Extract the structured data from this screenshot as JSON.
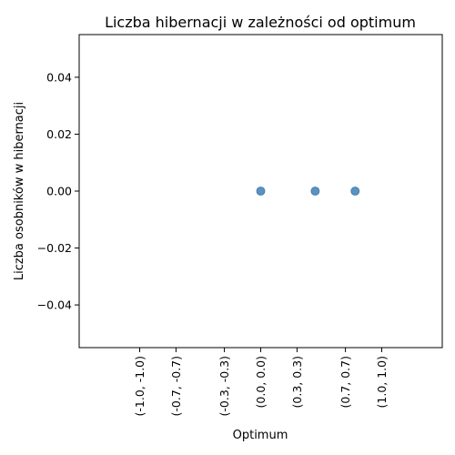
{
  "chart_data": {
    "type": "scatter",
    "title": "Liczba hibernacji w zależności od optimum",
    "xlabel": "Optimum",
    "ylabel": "Liczba osobników w hibernacji",
    "x_tick_labels": [
      "(-1.0, -1.0)",
      "(-0.7, -0.7)",
      "(-0.3, -0.3)",
      "(0.0, 0.0)",
      "(0.3, 0.3)",
      "(0.7, 0.7)",
      "(1.0, 1.0)"
    ],
    "x_tick_values": [
      -1.0,
      -0.7,
      -0.3,
      0.0,
      0.3,
      0.7,
      1.0
    ],
    "xlim": [
      -1.5,
      1.5
    ],
    "y_ticks": [
      -0.04,
      -0.02,
      0.0,
      0.02,
      0.04
    ],
    "y_tick_labels": [
      "−0.04",
      "−0.02",
      "0.00",
      "0.02",
      "0.04"
    ],
    "ylim": [
      -0.055,
      0.055
    ],
    "points": [
      {
        "x": 0.0,
        "y": 0.0
      },
      {
        "x": 0.45,
        "y": 0.0
      },
      {
        "x": 0.78,
        "y": 0.0
      }
    ],
    "marker_color": "#4a86b8",
    "grid": false,
    "legend": "none"
  }
}
